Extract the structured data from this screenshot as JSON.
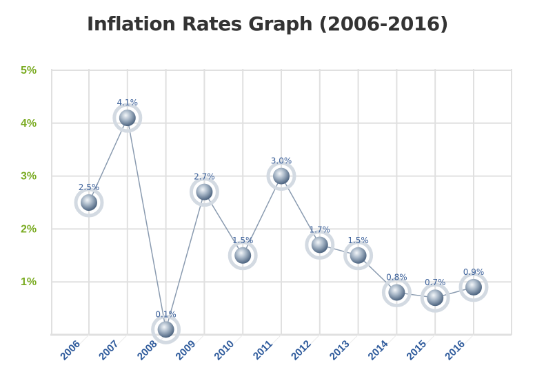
{
  "chart_data": {
    "type": "line",
    "title": "Inflation Rates Graph (2006-2016)",
    "xlabel": "",
    "ylabel": "",
    "categories": [
      "2006",
      "2007",
      "2008",
      "2009",
      "2010",
      "2011",
      "2012",
      "2013",
      "2014",
      "2015",
      "2016"
    ],
    "values": [
      2.5,
      4.1,
      0.1,
      2.7,
      1.5,
      3.0,
      1.7,
      1.5,
      0.8,
      0.7,
      0.9
    ],
    "data_labels": [
      "2.5%",
      "4.1%",
      "0.1%",
      "2.7%",
      "1.5%",
      "3.0%",
      "1.7%",
      "1.5%",
      "0.8%",
      "0.7%",
      "0.9%"
    ],
    "ylim": [
      0,
      5
    ],
    "yticks": [
      "1%",
      "2%",
      "3%",
      "4%",
      "5%"
    ],
    "grid": true,
    "legend": "none",
    "colors": {
      "ytick": "#7aab22",
      "xtick": "#2f5b9c",
      "line": "#8a9bb0",
      "marker": "#7f93aa",
      "label": "#3a5f99",
      "grid": "#e0e0e0"
    }
  }
}
